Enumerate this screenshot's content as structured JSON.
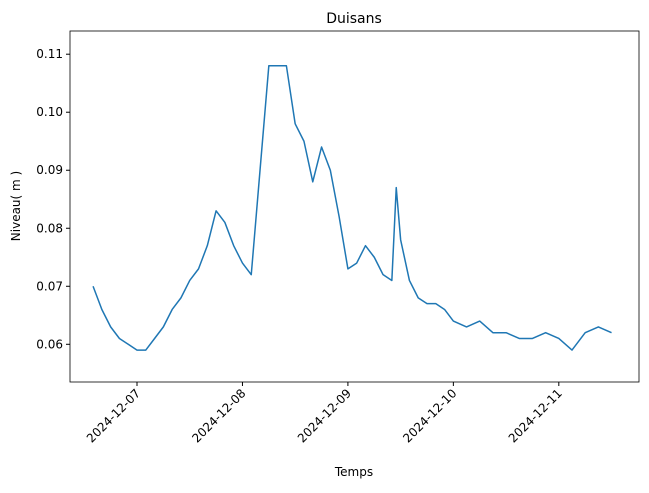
{
  "chart_data": {
    "type": "line",
    "title": "Duisans",
    "xlabel": "Temps",
    "ylabel": "Niveau( m )",
    "x": [
      "2024-12-06T14:00",
      "2024-12-06T16:00",
      "2024-12-06T18:00",
      "2024-12-06T20:00",
      "2024-12-06T22:00",
      "2024-12-07T00:00",
      "2024-12-07T02:00",
      "2024-12-07T04:00",
      "2024-12-07T06:00",
      "2024-12-07T08:00",
      "2024-12-07T10:00",
      "2024-12-07T12:00",
      "2024-12-07T14:00",
      "2024-12-07T16:00",
      "2024-12-07T18:00",
      "2024-12-07T20:00",
      "2024-12-07T22:00",
      "2024-12-08T00:00",
      "2024-12-08T02:00",
      "2024-12-08T04:00",
      "2024-12-08T06:00",
      "2024-12-08T08:00",
      "2024-12-08T10:00",
      "2024-12-08T12:00",
      "2024-12-08T14:00",
      "2024-12-08T16:00",
      "2024-12-08T18:00",
      "2024-12-08T20:00",
      "2024-12-08T22:00",
      "2024-12-09T00:00",
      "2024-12-09T02:00",
      "2024-12-09T04:00",
      "2024-12-09T06:00",
      "2024-12-09T08:00",
      "2024-12-09T10:00",
      "2024-12-09T11:00",
      "2024-12-09T12:00",
      "2024-12-09T14:00",
      "2024-12-09T16:00",
      "2024-12-09T18:00",
      "2024-12-09T20:00",
      "2024-12-09T22:00",
      "2024-12-10T00:00",
      "2024-12-10T03:00",
      "2024-12-10T06:00",
      "2024-12-10T09:00",
      "2024-12-10T12:00",
      "2024-12-10T15:00",
      "2024-12-10T18:00",
      "2024-12-10T21:00",
      "2024-12-11T00:00",
      "2024-12-11T03:00",
      "2024-12-11T06:00",
      "2024-12-11T09:00",
      "2024-12-11T12:00"
    ],
    "series": [
      {
        "color": "#1f77b4",
        "values": [
          0.07,
          0.066,
          0.063,
          0.061,
          0.06,
          0.059,
          0.059,
          0.061,
          0.063,
          0.066,
          0.068,
          0.071,
          0.073,
          0.077,
          0.083,
          0.081,
          0.077,
          0.074,
          0.072,
          0.09,
          0.108,
          0.108,
          0.108,
          0.098,
          0.095,
          0.088,
          0.094,
          0.09,
          0.082,
          0.073,
          0.074,
          0.077,
          0.075,
          0.072,
          0.071,
          0.087,
          0.078,
          0.071,
          0.068,
          0.067,
          0.067,
          0.066,
          0.064,
          0.063,
          0.064,
          0.062,
          0.062,
          0.061,
          0.061,
          0.062,
          0.061,
          0.059,
          0.062,
          0.063,
          0.062
        ]
      }
    ],
    "xlim": [
      "2024-12-06T08:45",
      "2024-12-11T18:15"
    ],
    "xticks": [
      "2024-12-07",
      "2024-12-08",
      "2024-12-09",
      "2024-12-10",
      "2024-12-11"
    ],
    "ylim": [
      0.0535,
      0.114
    ],
    "yticks": [
      0.06,
      0.07,
      0.08,
      0.09,
      {
        "value": 0.1,
        "label": "0.10"
      },
      0.11
    ]
  }
}
